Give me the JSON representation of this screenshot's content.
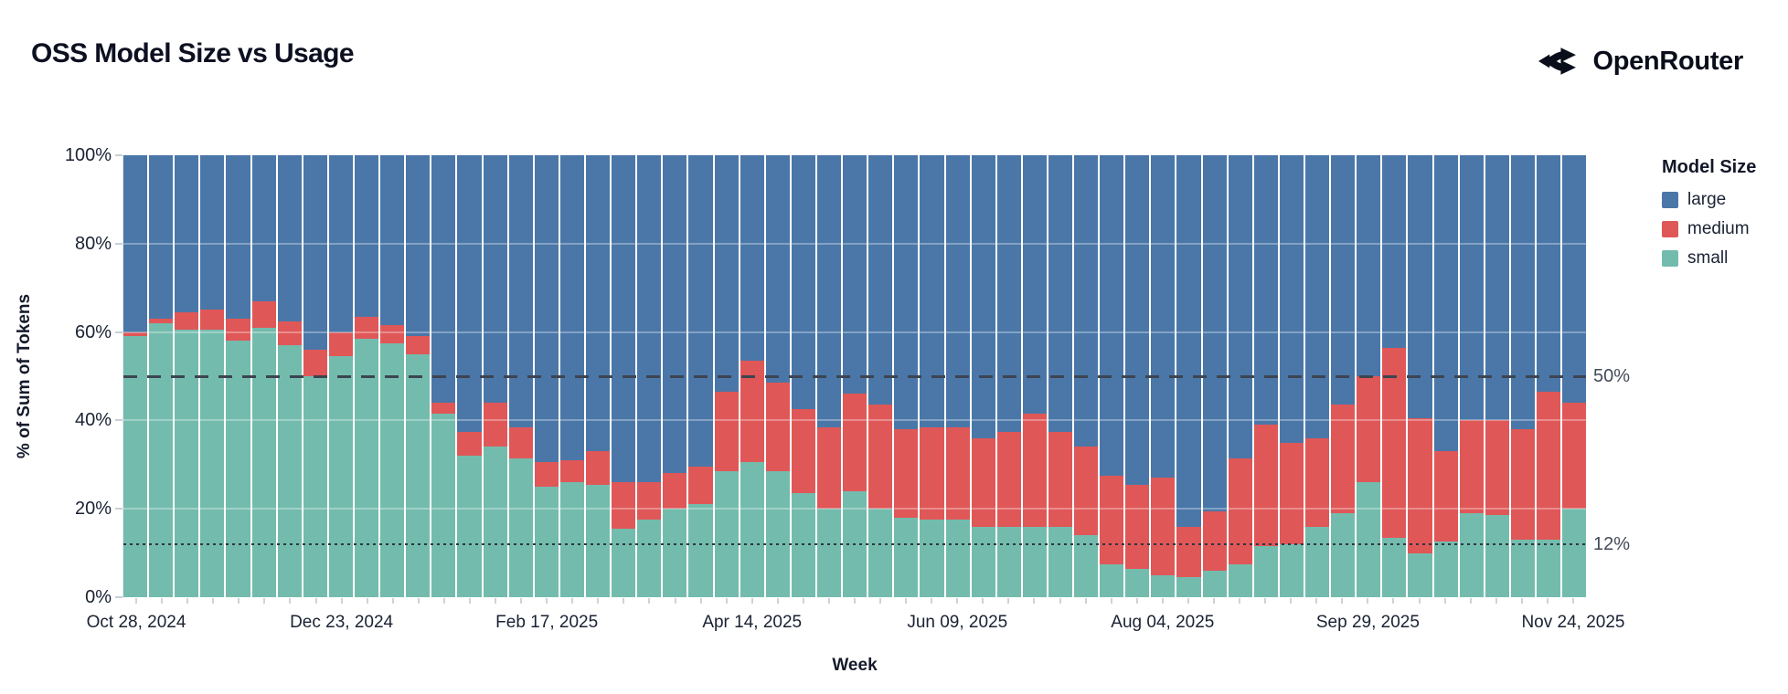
{
  "header": {
    "title": "OSS Model Size vs Usage",
    "brand": "OpenRouter"
  },
  "chart_data": {
    "type": "bar",
    "stacked": true,
    "unit": "percent",
    "title": "OSS Model Size vs Usage",
    "xlabel": "Week",
    "ylabel": "% of Sum of Tokens",
    "ylim": [
      0,
      100
    ],
    "grid": "faint horizontal at 20/40/60/80",
    "legend_position": "right",
    "legend_title": "Model Size",
    "n_bars": 57,
    "x_tick_every_n_bars": 8,
    "x_tick_labels": [
      "Oct 28, 2024",
      "Dec 23, 2024",
      "Feb 17, 2025",
      "Apr 14, 2025",
      "Jun 09, 2025",
      "Aug 04, 2025",
      "Sep 29, 2025",
      "Nov 24, 2025"
    ],
    "y_tick_labels": [
      "0%",
      "20%",
      "40%",
      "60%",
      "80%",
      "100%"
    ],
    "y_tick_values": [
      0,
      20,
      40,
      60,
      80,
      100
    ],
    "stack_order_bottom_to_top": [
      "small",
      "medium",
      "large"
    ],
    "series": [
      {
        "name": "large",
        "color": "#4a77a8",
        "values": [
          40,
          37,
          35.5,
          35,
          37,
          33,
          37.5,
          44,
          40,
          36.5,
          38.5,
          41,
          56,
          62.5,
          56,
          61.5,
          69.5,
          69,
          67,
          74,
          74,
          72,
          70.5,
          53.5,
          46.5,
          51.5,
          57.5,
          61.5,
          54,
          56.5,
          62,
          61.5,
          61.5,
          64,
          62.5,
          58.5,
          62.5,
          66,
          72.5,
          74.5,
          73,
          84,
          80.5,
          68.5,
          61,
          65,
          64,
          56.5,
          50,
          43.5,
          59.5,
          67,
          60,
          60,
          62,
          53.5,
          56
        ]
      },
      {
        "name": "medium",
        "color": "#e05757",
        "values": [
          1,
          1,
          4,
          4.5,
          5,
          6,
          5.5,
          6,
          5.5,
          5,
          4,
          4,
          2.5,
          5.5,
          10,
          7,
          5.5,
          5,
          7.5,
          10.5,
          8.5,
          8,
          8.5,
          18,
          23,
          20,
          19,
          18.5,
          22,
          23.5,
          20,
          21,
          21,
          20,
          21.5,
          25.5,
          21.5,
          20,
          20,
          19,
          22,
          11.5,
          13.5,
          24,
          27.5,
          23,
          20,
          24.5,
          24,
          43,
          30.5,
          20.5,
          21,
          21.5,
          25,
          33.5,
          24
        ]
      },
      {
        "name": "small",
        "color": "#73bcad",
        "values": [
          59,
          62,
          60.5,
          60.5,
          58,
          61,
          57,
          50,
          54.5,
          58.5,
          57.5,
          55,
          41.5,
          32,
          34,
          31.5,
          25,
          26,
          25.5,
          15.5,
          17.5,
          20,
          21,
          28.5,
          30.5,
          28.5,
          23.5,
          20,
          24,
          20,
          18,
          17.5,
          17.5,
          16,
          16,
          16,
          16,
          14,
          7.5,
          6.5,
          5,
          4.5,
          6,
          7.5,
          11.5,
          12,
          16,
          19,
          26,
          13.5,
          10,
          12.5,
          19,
          18.5,
          13,
          13,
          20
        ]
      }
    ],
    "ref_lines": [
      {
        "label": "50%",
        "y": 50,
        "style": "dashed",
        "color": "#3d4451"
      },
      {
        "label": "12%",
        "y": 12,
        "style": "dotted",
        "color": "#2e3542"
      }
    ]
  }
}
